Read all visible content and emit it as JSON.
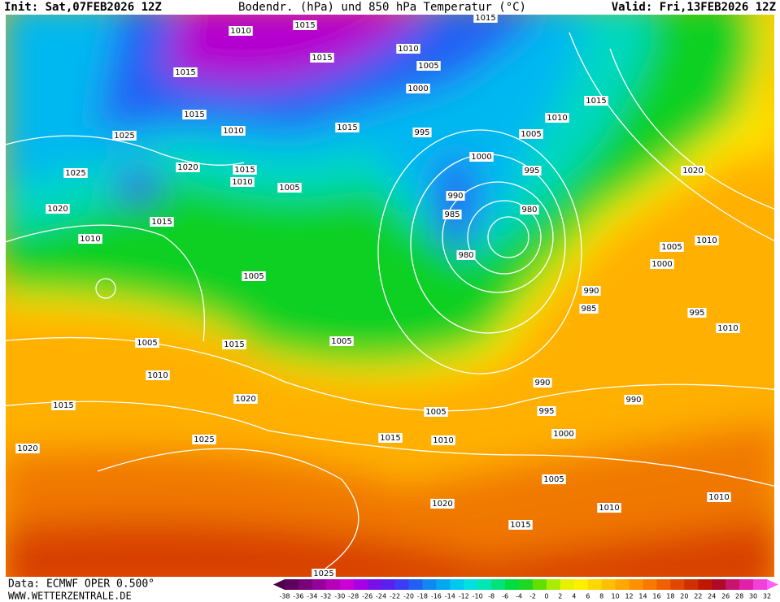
{
  "header": {
    "init": "Init: Sat,07FEB2026 12Z",
    "title": "Bodendr. (hPa) und 850 hPa Temperatur (°C)",
    "valid": "Valid: Fri,13FEB2026 12Z"
  },
  "footer": {
    "source": "Data: ECMWF OPER 0.500°",
    "site": "WWW.WETTERZENTRALE.DE"
  },
  "colorbar": {
    "ticks": [
      -38,
      -36,
      -34,
      -32,
      -30,
      -28,
      -26,
      -24,
      -22,
      -20,
      -18,
      -16,
      -14,
      -12,
      -10,
      -8,
      -6,
      -4,
      -2,
      0,
      2,
      4,
      6,
      8,
      10,
      12,
      14,
      16,
      18,
      20,
      22,
      24,
      26,
      28,
      30,
      32
    ],
    "colors": [
      "#4a0048",
      "#5e005e",
      "#78007a",
      "#96009a",
      "#b400b8",
      "#cc00d6",
      "#a600e6",
      "#7a10e8",
      "#5a20f0",
      "#3c3cf4",
      "#2060f4",
      "#1088f0",
      "#00a8f0",
      "#00c8f0",
      "#00e0e0",
      "#00e6b4",
      "#00e27a",
      "#00dc40",
      "#20d820",
      "#60e000",
      "#a8ec00",
      "#e8f000",
      "#fff000",
      "#ffd800",
      "#ffc000",
      "#ffa800",
      "#ff9000",
      "#f87800",
      "#f06000",
      "#e04800",
      "#d03000",
      "#c01800",
      "#b00828",
      "#c8146c",
      "#e020a8",
      "#f040d8",
      "#ff60ff"
    ]
  },
  "isobars": [
    "1015",
    "1010",
    "1015",
    "1010",
    "1015",
    "1005",
    "1015",
    "1000",
    "1015",
    "1015",
    "1010",
    "1010",
    "1015",
    "995",
    "1005",
    "1025",
    "1000",
    "1020",
    "1025",
    "1015",
    "995",
    "1020",
    "1010",
    "1005",
    "990",
    "1020",
    "980",
    "985",
    "1015",
    "1010",
    "1010",
    "1005",
    "980",
    "1000",
    "1005",
    "990",
    "985",
    "995",
    "1005",
    "1015",
    "1005",
    "1010",
    "1010",
    "990",
    "1015",
    "1020",
    "990",
    "1005",
    "995",
    "1000",
    "1015",
    "1010",
    "1025",
    "1020",
    "1005",
    "1010",
    "1010",
    "1020",
    "1015",
    "1025"
  ]
}
